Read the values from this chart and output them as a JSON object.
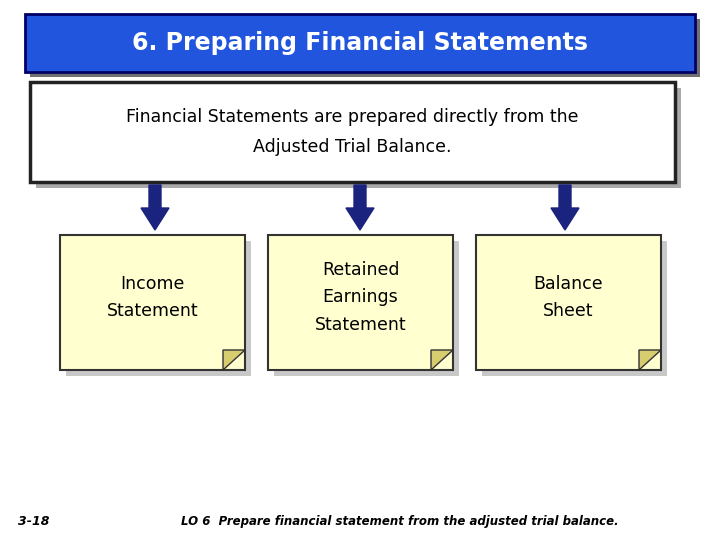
{
  "title": "6. Preparing Financial Statements",
  "title_bg_color": "#2255DD",
  "title_text_color": "#FFFFFF",
  "title_shadow_color": "#111111",
  "subtitle_text": "Financial Statements are prepared directly from the\nAdjusted Trial Balance.",
  "subtitle_bg": "#FFFFFF",
  "subtitle_border": "#222222",
  "subtitle_shadow": "#555555",
  "box_bg_color": "#FFFFD0",
  "box_border_color": "#333333",
  "box_shadow_color": "#777777",
  "curl_color": "#D8CC70",
  "arrow_color": "#1A237E",
  "boxes": [
    {
      "label": "Income\nStatement"
    },
    {
      "label": "Retained\nEarnings\nStatement"
    },
    {
      "label": "Balance\nSheet"
    }
  ],
  "footer_left": "3-18",
  "footer_right": "LO 6  Prepare financial statement from the adjusted trial balance.",
  "bg_color": "#FFFFFF"
}
